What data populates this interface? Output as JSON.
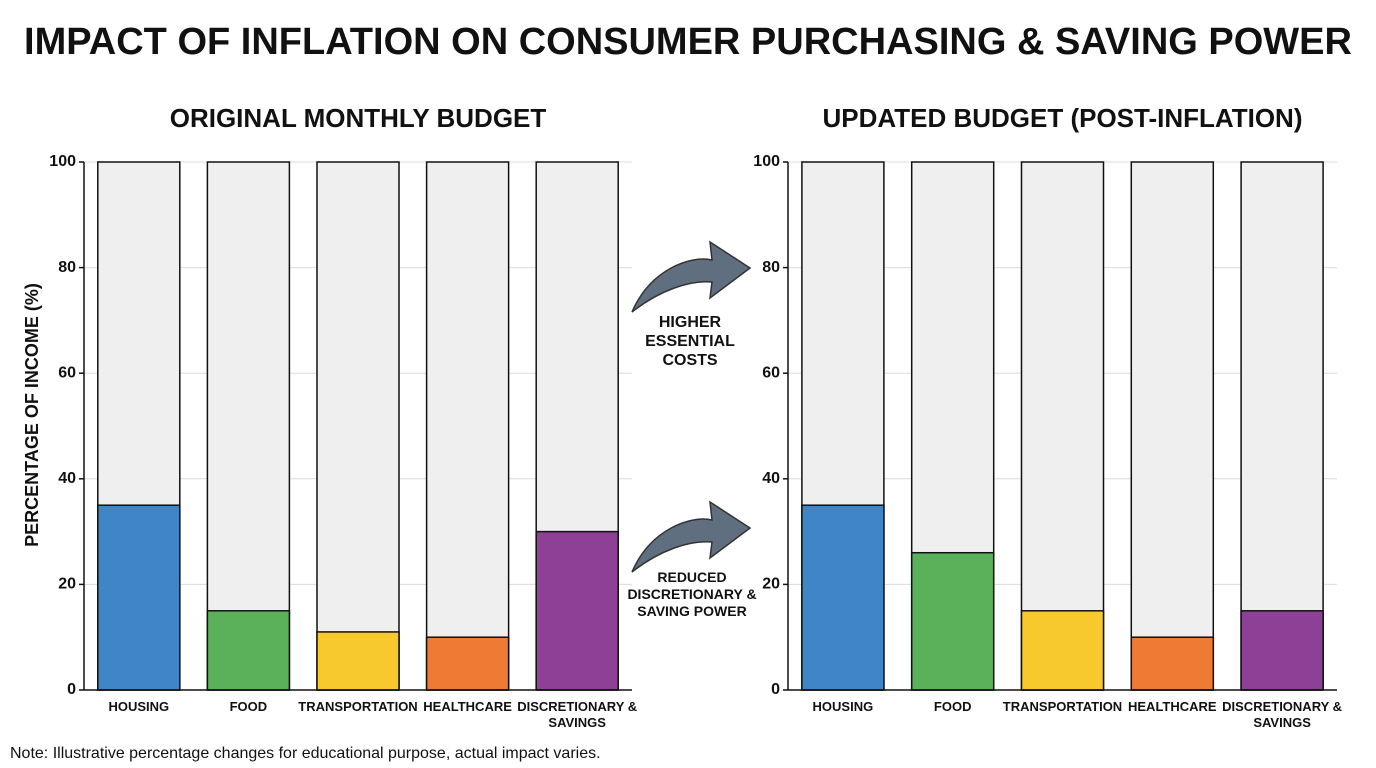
{
  "title": "IMPACT OF INFLATION ON CONSUMER PURCHASING & SAVING POWER",
  "note": "Note: Illustrative percentage changes for educational purpose, actual impact varies.",
  "annotations": [
    "HIGHER ESSENTIAL COSTS",
    "REDUCED DISCRETIONARY & SAVING POWER"
  ],
  "chart_data": [
    {
      "type": "bar",
      "subtitle": "ORIGINAL MONTHLY BUDGET",
      "ylabel": "PERCENTAGE OF INCOME (%)",
      "categories": [
        "HOUSING",
        "FOOD",
        "TRANSPORTATION",
        "HEALTHCARE",
        "DISCRETIONARY & SAVINGS"
      ],
      "values": [
        35,
        15,
        11,
        10,
        30
      ],
      "colors": [
        "#3f86c8",
        "#5bb05a",
        "#f7c92c",
        "#ef7a33",
        "#8e3f96"
      ],
      "ylim": [
        0,
        100
      ],
      "yticks": [
        0,
        20,
        40,
        60,
        80,
        100
      ],
      "grid": true
    },
    {
      "type": "bar",
      "subtitle": "UPDATED BUDGET (POST-INFLATION)",
      "categories": [
        "HOUSING",
        "FOOD",
        "TRANSPORTATION",
        "HEALTHCARE",
        "DISCRETIONARY & SAVINGS"
      ],
      "values": [
        35,
        26,
        15,
        10,
        15
      ],
      "colors": [
        "#3f86c8",
        "#5bb05a",
        "#f7c92c",
        "#ef7a33",
        "#8e3f96"
      ],
      "ylim": [
        0,
        100
      ],
      "yticks": [
        0,
        20,
        40,
        60,
        80,
        100
      ],
      "grid": true
    }
  ]
}
